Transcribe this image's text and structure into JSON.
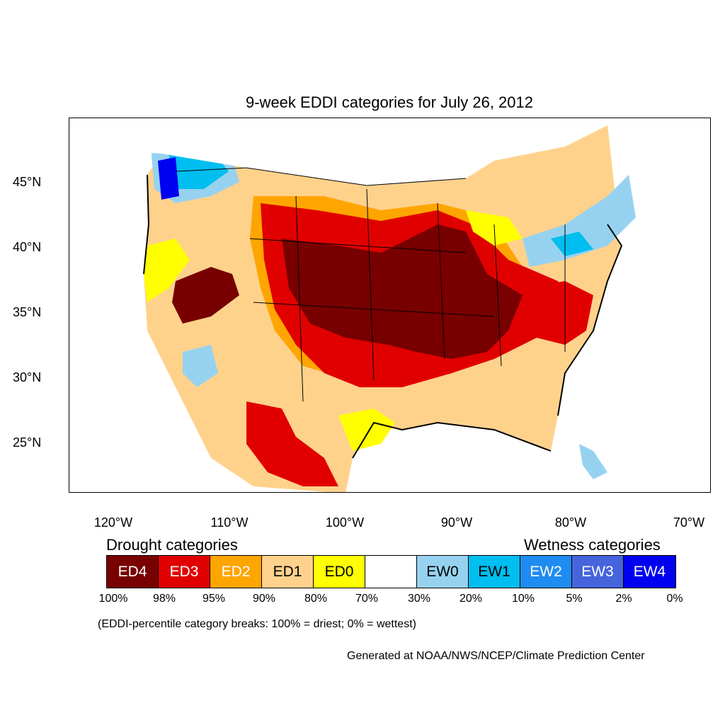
{
  "title": "9-week EDDI categories for July 26, 2012",
  "axes": {
    "lat_labels": [
      "45°N",
      "40°N",
      "35°N",
      "30°N",
      "25°N"
    ],
    "lon_labels": [
      "120°W",
      "110°W",
      "100°W",
      "90°W",
      "80°W",
      "70°W"
    ]
  },
  "legend": {
    "drought_heading": "Drought categories",
    "wetness_heading": "Wetness categories",
    "categories": [
      {
        "label": "ED4",
        "color": "#780000",
        "text_color": "#ffffff"
      },
      {
        "label": "ED3",
        "color": "#e10000",
        "text_color": "#ffffff"
      },
      {
        "label": "ED2",
        "color": "#ffa500",
        "text_color": "#ffffff"
      },
      {
        "label": "ED1",
        "color": "#ffd28c",
        "text_color": "#000000"
      },
      {
        "label": "ED0",
        "color": "#ffff00",
        "text_color": "#000000"
      },
      {
        "label": "",
        "color": "#ffffff",
        "text_color": "#000000"
      },
      {
        "label": "EW0",
        "color": "#96d2f0",
        "text_color": "#000000"
      },
      {
        "label": "EW1",
        "color": "#00bef0",
        "text_color": "#000000"
      },
      {
        "label": "EW2",
        "color": "#1e8cf0",
        "text_color": "#ffffff"
      },
      {
        "label": "EW3",
        "color": "#4664dc",
        "text_color": "#ffffff"
      },
      {
        "label": "EW4",
        "color": "#0000f0",
        "text_color": "#ffffff"
      }
    ],
    "breaks": [
      "100%",
      "98%",
      "95%",
      "90%",
      "80%",
      "70%",
      "30%",
      "20%",
      "10%",
      "5%",
      "2%",
      "0%"
    ]
  },
  "caption": "(EDDI-percentile category breaks: 100% = driest; 0% = wettest)",
  "credit": "Generated at NOAA/NWS/NCEP/Climate Prediction Center"
}
